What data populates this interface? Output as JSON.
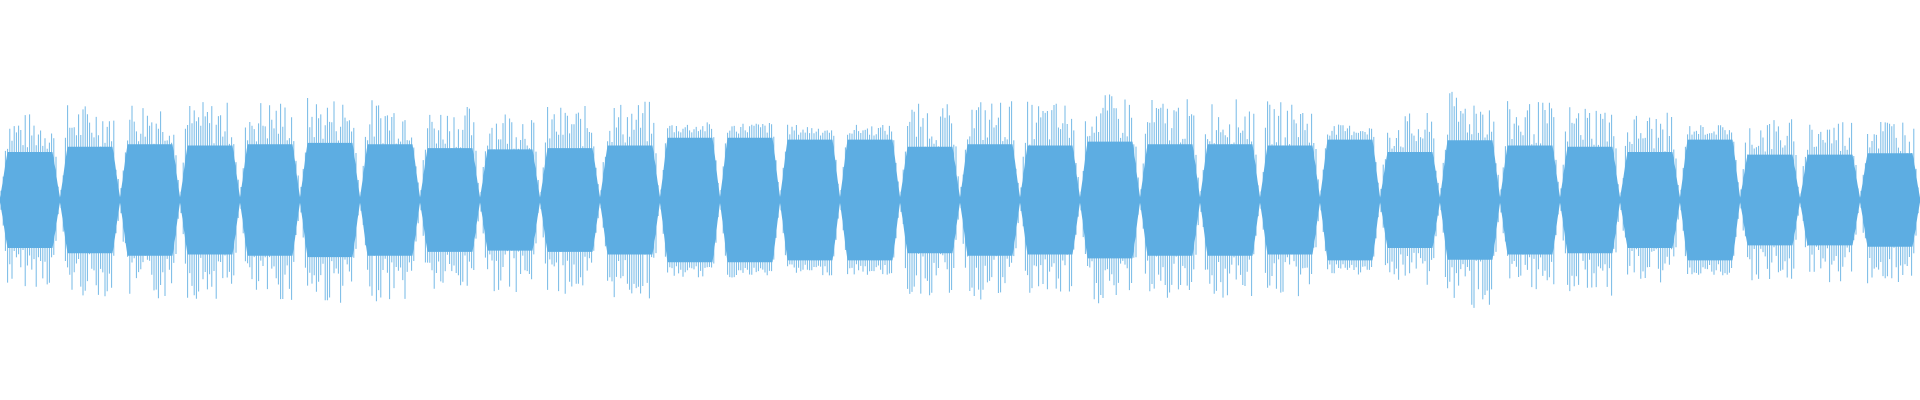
{
  "waveform": {
    "color": "#5dade2",
    "background": "#ffffff",
    "segments": [
      {
        "peak": 0.74,
        "shape": "sharp"
      },
      {
        "peak": 0.82,
        "shape": "sharp"
      },
      {
        "peak": 0.86,
        "shape": "sharp"
      },
      {
        "peak": 0.84,
        "shape": "sharp"
      },
      {
        "peak": 0.86,
        "shape": "sharp"
      },
      {
        "peak": 0.88,
        "shape": "sharp"
      },
      {
        "peak": 0.86,
        "shape": "sharp"
      },
      {
        "peak": 0.8,
        "shape": "sharp"
      },
      {
        "peak": 0.78,
        "shape": "sharp"
      },
      {
        "peak": 0.8,
        "shape": "sharp"
      },
      {
        "peak": 0.84,
        "shape": "sharp"
      },
      {
        "peak": 0.66,
        "shape": "smooth"
      },
      {
        "peak": 0.66,
        "shape": "smooth"
      },
      {
        "peak": 0.64,
        "shape": "smooth"
      },
      {
        "peak": 0.64,
        "shape": "smooth"
      },
      {
        "peak": 0.82,
        "shape": "sharp"
      },
      {
        "peak": 0.86,
        "shape": "sharp"
      },
      {
        "peak": 0.84,
        "shape": "sharp"
      },
      {
        "peak": 0.9,
        "shape": "sharp"
      },
      {
        "peak": 0.86,
        "shape": "sharp"
      },
      {
        "peak": 0.86,
        "shape": "sharp"
      },
      {
        "peak": 0.84,
        "shape": "sharp"
      },
      {
        "peak": 0.64,
        "shape": "smooth"
      },
      {
        "peak": 0.74,
        "shape": "sharp"
      },
      {
        "peak": 0.92,
        "shape": "sharp"
      },
      {
        "peak": 0.84,
        "shape": "sharp"
      },
      {
        "peak": 0.82,
        "shape": "sharp"
      },
      {
        "peak": 0.74,
        "shape": "sharp"
      },
      {
        "peak": 0.64,
        "shape": "smooth"
      },
      {
        "peak": 0.7,
        "shape": "sharp"
      },
      {
        "peak": 0.7,
        "shape": "sharp"
      },
      {
        "peak": 0.72,
        "shape": "sharp"
      }
    ]
  }
}
